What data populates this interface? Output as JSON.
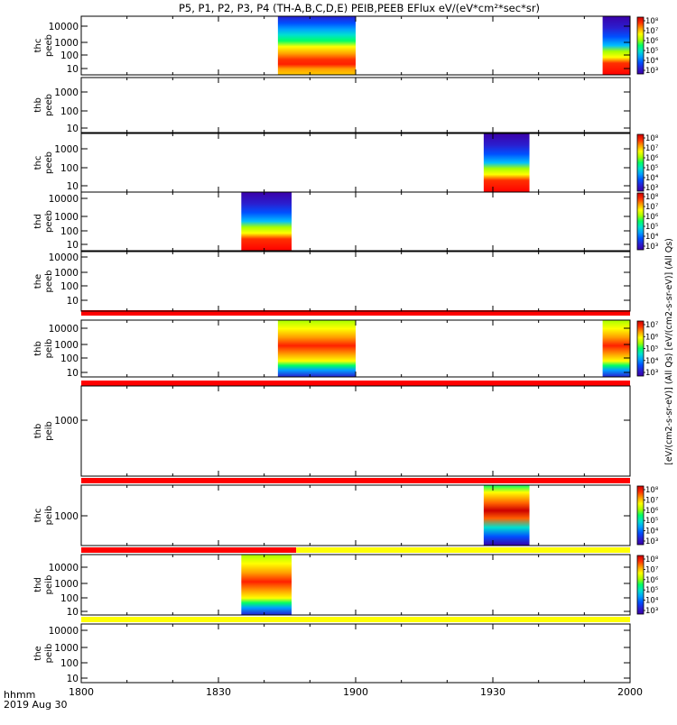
{
  "title": "P5, P1, P2, P3, P4 (TH-A,B,C,D,E) PEIB,PEEB EFlux eV/(eV*cm²*sec*sr)",
  "footer": {
    "time_label": "hhmm",
    "date_label": "2019 Aug 30"
  },
  "colorbar_label": "[eV/(cm2-s-sr-eV)] (All Qs) [eV/(cm2-s-sr-eV)] (All Qs)",
  "colors": {
    "status_red": "#ff0000",
    "status_yellow": "#ffff00",
    "colormap": [
      "#3b00a8",
      "#2a1fd0",
      "#0050ff",
      "#00a0ff",
      "#00e0d0",
      "#00ff66",
      "#a6ff00",
      "#ffff00",
      "#ffa000",
      "#ff3000",
      "#cc0000"
    ]
  },
  "chart_data": {
    "type": "heatmap",
    "x_axis": {
      "range": [
        "1800",
        "2000"
      ],
      "ticks": [
        "1800",
        "1830",
        "1900",
        "1930",
        "2000"
      ]
    },
    "panels": [
      {
        "label": [
          "thc",
          "peeb"
        ],
        "yticks": [
          "10000",
          "1000",
          "100",
          "10"
        ],
        "scale": "log",
        "blocks": [
          {
            "start": "1843",
            "end": "1900"
          },
          {
            "start": "1954",
            "end": "2000"
          }
        ],
        "colorbar": {
          "ticks": [
            "10⁸",
            "10⁷",
            "10⁶",
            "10⁵",
            "10⁴",
            "10³"
          ]
        }
      },
      {
        "label": [
          "thb",
          "peeb"
        ],
        "yticks": [
          "1000",
          "100",
          "10"
        ],
        "scale": "log",
        "blocks": []
      },
      {
        "label": [
          "thc",
          "peeb"
        ],
        "yticks": [
          "1000",
          "100",
          "10"
        ],
        "scale": "log",
        "blocks": [
          {
            "start": "1928",
            "end": "1938"
          }
        ],
        "colorbar": {
          "ticks": [
            "10⁸",
            "10⁷",
            "10⁶",
            "10⁵",
            "10⁴",
            "10³"
          ]
        }
      },
      {
        "label": [
          "thd",
          "peeb"
        ],
        "yticks": [
          "10000",
          "1000",
          "100",
          "10"
        ],
        "scale": "log",
        "blocks": [
          {
            "start": "1835",
            "end": "1846"
          }
        ],
        "colorbar": {
          "ticks": [
            "10⁸",
            "10⁷",
            "10⁶",
            "10⁵",
            "10⁴",
            "10³"
          ]
        }
      },
      {
        "label": [
          "the",
          "peeb"
        ],
        "yticks": [
          "10000",
          "1000",
          "100",
          "10"
        ],
        "scale": "log",
        "blocks": []
      },
      {
        "label": [
          "thb",
          "peib"
        ],
        "yticks": [
          "10000",
          "1000",
          "100",
          "10"
        ],
        "scale": "log",
        "blocks": [
          {
            "start": "1843",
            "end": "1900"
          },
          {
            "start": "1954",
            "end": "2000"
          }
        ],
        "colorbar": {
          "ticks": [
            "10⁷",
            "10⁶",
            "10⁵",
            "10⁴",
            "10³"
          ]
        }
      },
      {
        "label": [
          "thb",
          "peib"
        ],
        "yticks": [
          "1000"
        ],
        "scale": "log",
        "blocks": []
      },
      {
        "label": [
          "thc",
          "peib"
        ],
        "yticks": [
          "1000"
        ],
        "scale": "log",
        "blocks": [
          {
            "start": "1928",
            "end": "1938"
          }
        ],
        "colorbar": {
          "ticks": [
            "10⁸",
            "10⁷",
            "10⁶",
            "10⁵",
            "10⁴",
            "10³"
          ]
        }
      },
      {
        "label": [
          "thd",
          "peib"
        ],
        "yticks": [
          "10000",
          "1000",
          "100",
          "10"
        ],
        "scale": "log",
        "blocks": [
          {
            "start": "1835",
            "end": "1846"
          }
        ],
        "colorbar": {
          "ticks": [
            "10⁸",
            "10⁷",
            "10⁶",
            "10⁵",
            "10⁴",
            "10³"
          ]
        }
      },
      {
        "label": [
          "the",
          "peib"
        ],
        "yticks": [
          "10000",
          "1000",
          "100",
          "10"
        ],
        "scale": "log",
        "blocks": []
      }
    ]
  }
}
